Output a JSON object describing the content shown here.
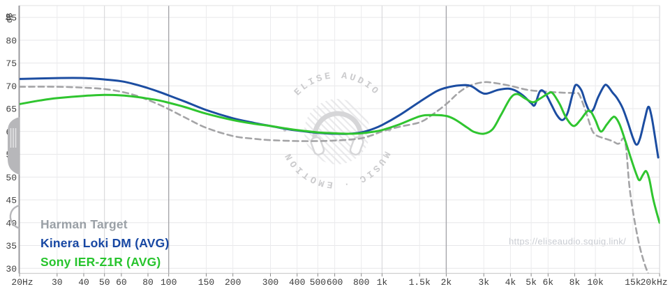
{
  "watermark": {
    "top_text": "ELISE AUDIO",
    "bottom_text": "MUSIC · EMOTION",
    "url": "https://eliseaudio.squig.link/"
  },
  "legend": {
    "items": [
      {
        "label": "Harman Target",
        "color": "#9aa0a6"
      },
      {
        "label": "Kinera Loki DM (AVG)",
        "color": "#1747a3"
      },
      {
        "label": "Sony IER-Z1R (AVG)",
        "color": "#27c42d"
      }
    ]
  },
  "chart_data": {
    "type": "line",
    "x_scale": "log",
    "x_range": [
      20,
      20000
    ],
    "y_unit_label": "dB",
    "y_ticks": [
      85,
      80,
      75,
      70,
      65,
      60,
      55,
      50,
      45,
      40,
      35,
      30
    ],
    "x_ticks": [
      [
        "20Hz",
        20
      ],
      [
        "30",
        30
      ],
      [
        "40",
        40
      ],
      [
        "50",
        50
      ],
      [
        "60",
        60
      ],
      [
        "80",
        80
      ],
      [
        "100",
        100
      ],
      [
        "150",
        150
      ],
      [
        "200",
        200
      ],
      [
        "300",
        300
      ],
      [
        "400",
        400
      ],
      [
        "500",
        500
      ],
      [
        "600",
        600
      ],
      [
        "800",
        800
      ],
      [
        "1k",
        1000
      ],
      [
        "1.5k",
        1500
      ],
      [
        "2k",
        2000
      ],
      [
        "3k",
        3000
      ],
      [
        "4k",
        4000
      ],
      [
        "5k",
        5000
      ],
      [
        "6k",
        6000
      ],
      [
        "8k",
        8000
      ],
      [
        "10k",
        10000
      ],
      [
        "15k",
        15000
      ],
      [
        "20kHz",
        20000
      ]
    ],
    "grid": {
      "h_color": "#e7e7e9",
      "light_color": "#ebebed",
      "medium_color": "#d3d3d6",
      "dark_color": "#a7a7ac",
      "medium_lines": [
        50,
        1000,
        20000
      ],
      "dark_lines": [
        100,
        2000
      ],
      "left_axis_color": "#9a9a9e",
      "bottom_axis_color": "#cfcfcf",
      "top_border_color": "#e0e0e2",
      "tick_color": "#8a8a8a",
      "tick_text_color": "#3d3d3d",
      "watermark_color": "#cbcbcd",
      "watermark_icon_color": "#d6d6d8",
      "watermark_hatch_color": "#e2e2e4",
      "handle_color": "#b7b7ba"
    },
    "series": [
      {
        "name": "Harman Target",
        "color": "#a4a4a6",
        "dashed": true,
        "points": [
          [
            20,
            69.8
          ],
          [
            30,
            69.8
          ],
          [
            40,
            69.6
          ],
          [
            50,
            69.3
          ],
          [
            60,
            68.7
          ],
          [
            70,
            67.9
          ],
          [
            80,
            66.9
          ],
          [
            90,
            65.9
          ],
          [
            100,
            64.9
          ],
          [
            120,
            63.0
          ],
          [
            150,
            60.8
          ],
          [
            200,
            59.0
          ],
          [
            250,
            58.4
          ],
          [
            300,
            58.1
          ],
          [
            400,
            57.9
          ],
          [
            500,
            57.9
          ],
          [
            600,
            58.0
          ],
          [
            700,
            58.2
          ],
          [
            800,
            58.5
          ],
          [
            900,
            59.2
          ],
          [
            1000,
            60.0
          ],
          [
            1200,
            61.0
          ],
          [
            1500,
            62.0
          ],
          [
            1700,
            63.5
          ],
          [
            2000,
            66.0
          ],
          [
            2300,
            68.6
          ],
          [
            2600,
            70.1
          ],
          [
            3000,
            70.8
          ],
          [
            3400,
            70.6
          ],
          [
            4000,
            70.0
          ],
          [
            4500,
            69.4
          ],
          [
            5000,
            69.0
          ],
          [
            6000,
            68.7
          ],
          [
            7000,
            68.5
          ],
          [
            8000,
            68.4
          ],
          [
            8400,
            68.1
          ],
          [
            9000,
            64.5
          ],
          [
            9600,
            60.5
          ],
          [
            10000,
            59.3
          ],
          [
            10500,
            58.8
          ],
          [
            11000,
            58.5
          ],
          [
            12000,
            57.9
          ],
          [
            12700,
            57.3
          ],
          [
            13100,
            57.6
          ],
          [
            13400,
            58.4
          ],
          [
            13700,
            58.2
          ],
          [
            14000,
            55.5
          ],
          [
            14400,
            48.5
          ],
          [
            15000,
            42.5
          ],
          [
            16000,
            35.5
          ],
          [
            17000,
            31.0
          ],
          [
            17800,
            28.5
          ]
        ]
      },
      {
        "name": "Kinera Loki DM (AVG)",
        "color": "#1c4da1",
        "dashed": false,
        "points": [
          [
            20,
            71.5
          ],
          [
            30,
            71.7
          ],
          [
            40,
            71.7
          ],
          [
            50,
            71.4
          ],
          [
            60,
            71.0
          ],
          [
            70,
            70.3
          ],
          [
            80,
            69.5
          ],
          [
            90,
            68.7
          ],
          [
            100,
            67.9
          ],
          [
            120,
            66.5
          ],
          [
            150,
            64.7
          ],
          [
            200,
            62.9
          ],
          [
            250,
            61.9
          ],
          [
            300,
            61.2
          ],
          [
            350,
            60.6
          ],
          [
            400,
            60.2
          ],
          [
            500,
            59.7
          ],
          [
            600,
            59.5
          ],
          [
            700,
            59.5
          ],
          [
            800,
            59.8
          ],
          [
            900,
            60.5
          ],
          [
            1000,
            61.4
          ],
          [
            1200,
            63.5
          ],
          [
            1500,
            66.5
          ],
          [
            1800,
            68.8
          ],
          [
            2000,
            69.6
          ],
          [
            2300,
            70.1
          ],
          [
            2600,
            70.0
          ],
          [
            2900,
            68.6
          ],
          [
            3100,
            68.3
          ],
          [
            3500,
            69.1
          ],
          [
            3900,
            69.4
          ],
          [
            4200,
            69.0
          ],
          [
            4600,
            67.8
          ],
          [
            5000,
            66.2
          ],
          [
            5200,
            65.8
          ],
          [
            5500,
            68.8
          ],
          [
            5800,
            68.5
          ],
          [
            6200,
            66.0
          ],
          [
            6600,
            63.6
          ],
          [
            7000,
            62.5
          ],
          [
            7400,
            64.0
          ],
          [
            7800,
            68.0
          ],
          [
            8100,
            70.2
          ],
          [
            8600,
            69.0
          ],
          [
            9000,
            66.3
          ],
          [
            9400,
            64.4
          ],
          [
            9800,
            64.9
          ],
          [
            10300,
            67.5
          ],
          [
            11000,
            70.0
          ],
          [
            11400,
            70.0
          ],
          [
            12000,
            68.6
          ],
          [
            12600,
            67.4
          ],
          [
            13400,
            65.2
          ],
          [
            14200,
            62.0
          ],
          [
            15000,
            58.6
          ],
          [
            15600,
            57.1
          ],
          [
            16200,
            58.5
          ],
          [
            17000,
            62.5
          ],
          [
            17700,
            65.4
          ],
          [
            18300,
            63.5
          ],
          [
            19000,
            59.0
          ],
          [
            19700,
            54.3
          ]
        ]
      },
      {
        "name": "Sony IER-Z1R (AVG)",
        "color": "#2fc52f",
        "dashed": false,
        "points": [
          [
            20,
            66.0
          ],
          [
            25,
            66.8
          ],
          [
            30,
            67.3
          ],
          [
            40,
            67.8
          ],
          [
            50,
            68.0
          ],
          [
            60,
            67.9
          ],
          [
            70,
            67.6
          ],
          [
            80,
            67.2
          ],
          [
            90,
            66.8
          ],
          [
            100,
            66.3
          ],
          [
            120,
            65.3
          ],
          [
            150,
            63.9
          ],
          [
            200,
            62.5
          ],
          [
            250,
            61.7
          ],
          [
            300,
            61.2
          ],
          [
            350,
            60.7
          ],
          [
            400,
            60.3
          ],
          [
            500,
            59.8
          ],
          [
            600,
            59.6
          ],
          [
            700,
            59.5
          ],
          [
            800,
            59.6
          ],
          [
            900,
            59.9
          ],
          [
            1000,
            60.3
          ],
          [
            1200,
            61.5
          ],
          [
            1500,
            63.3
          ],
          [
            1700,
            63.6
          ],
          [
            2000,
            63.4
          ],
          [
            2200,
            62.6
          ],
          [
            2500,
            60.9
          ],
          [
            2700,
            59.9
          ],
          [
            3000,
            59.5
          ],
          [
            3300,
            60.5
          ],
          [
            3600,
            63.5
          ],
          [
            4000,
            67.3
          ],
          [
            4300,
            68.2
          ],
          [
            4700,
            67.2
          ],
          [
            5100,
            66.4
          ],
          [
            5500,
            67.2
          ],
          [
            6000,
            68.3
          ],
          [
            6300,
            68.4
          ],
          [
            6800,
            66.0
          ],
          [
            7300,
            63.0
          ],
          [
            7900,
            61.2
          ],
          [
            8500,
            62.5
          ],
          [
            9100,
            64.3
          ],
          [
            9500,
            64.4
          ],
          [
            10000,
            62.5
          ],
          [
            10600,
            60.0
          ],
          [
            11300,
            61.5
          ],
          [
            12000,
            63.0
          ],
          [
            12400,
            63.1
          ],
          [
            13000,
            61.5
          ],
          [
            13800,
            58.0
          ],
          [
            14800,
            53.6
          ],
          [
            15600,
            50.5
          ],
          [
            16100,
            49.3
          ],
          [
            16700,
            50.5
          ],
          [
            17300,
            51.3
          ],
          [
            17900,
            49.5
          ],
          [
            18600,
            45.5
          ],
          [
            19300,
            42.5
          ],
          [
            20000,
            40.0
          ]
        ]
      }
    ]
  }
}
